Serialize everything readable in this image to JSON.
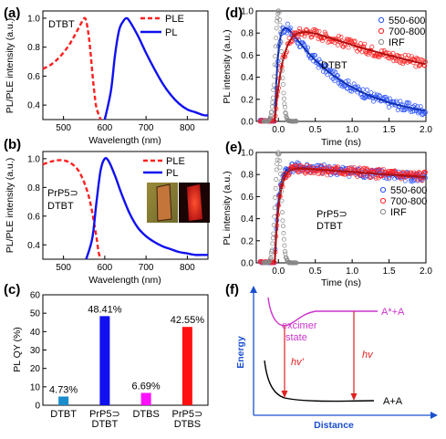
{
  "panel_labels": [
    "(a)",
    "(b)",
    "(c)",
    "(d)",
    "(e)",
    "(f)"
  ],
  "chart_data": [
    {
      "panel": "(a)",
      "type": "line",
      "xlabel": "Wavelength (nm)",
      "ylabel": "PL/PLE intensity (a.u.)",
      "xlim": [
        450,
        850
      ],
      "ylim": [
        0.3,
        1.05
      ],
      "xticks": [
        "500",
        "600",
        "700",
        "800"
      ],
      "yticks": [
        "0.4",
        "0.6",
        "0.8",
        "1.0"
      ],
      "inner_label": "DTBT",
      "legend": [
        "PLE",
        "PL"
      ],
      "series": [
        {
          "name": "PLE",
          "color": "#ff2020",
          "style": "dashed",
          "x": [
            450,
            470,
            490,
            510,
            525,
            540,
            550,
            555,
            560,
            565,
            570,
            575,
            580,
            590
          ],
          "y": [
            0.65,
            0.68,
            0.73,
            0.8,
            0.87,
            0.95,
            1.0,
            0.98,
            0.9,
            0.78,
            0.62,
            0.48,
            0.38,
            0.3
          ]
        },
        {
          "name": "PL",
          "color": "#1010f0",
          "style": "solid",
          "x": [
            600,
            615,
            625,
            635,
            645,
            652,
            660,
            680,
            700,
            720,
            740,
            760,
            780,
            800,
            820,
            840,
            850
          ],
          "y": [
            0.3,
            0.5,
            0.75,
            0.92,
            0.98,
            1.0,
            0.98,
            0.88,
            0.76,
            0.65,
            0.55,
            0.47,
            0.41,
            0.37,
            0.35,
            0.33,
            0.33
          ]
        }
      ]
    },
    {
      "panel": "(b)",
      "type": "line",
      "xlabel": "Wavelength (nm)",
      "ylabel": "PL/PLE intensity (a.u.)",
      "xlim": [
        450,
        850
      ],
      "ylim": [
        0.3,
        1.05
      ],
      "xticks": [
        "500",
        "600",
        "700",
        "800"
      ],
      "yticks": [
        "0.4",
        "0.6",
        "0.8",
        "1.0"
      ],
      "inner_label": [
        "PrP5⊃",
        "DTBT"
      ],
      "legend": [
        "PLE",
        "PL"
      ],
      "series": [
        {
          "name": "PLE",
          "color": "#ff2020",
          "style": "dashed",
          "x": [
            450,
            470,
            490,
            510,
            530,
            545,
            560,
            570,
            580,
            585,
            590
          ],
          "y": [
            0.96,
            0.98,
            0.99,
            0.98,
            0.94,
            0.87,
            0.75,
            0.62,
            0.45,
            0.35,
            0.3
          ]
        },
        {
          "name": "PL",
          "color": "#1010f0",
          "style": "solid",
          "x": [
            555,
            570,
            580,
            590,
            600,
            610,
            625,
            640,
            660,
            680,
            700,
            720,
            740,
            760,
            780,
            800,
            820,
            840,
            850
          ],
          "y": [
            0.3,
            0.45,
            0.7,
            0.92,
            1.0,
            0.98,
            0.88,
            0.76,
            0.62,
            0.52,
            0.46,
            0.42,
            0.39,
            0.37,
            0.35,
            0.34,
            0.33,
            0.33,
            0.33
          ]
        }
      ]
    },
    {
      "panel": "(c)",
      "type": "bar",
      "ylabel": "PL QY (%)",
      "ylim": [
        0,
        60
      ],
      "yticks": [
        "0",
        "10",
        "20",
        "30",
        "40",
        "50",
        "60"
      ],
      "categories": [
        [
          "DTBT"
        ],
        [
          "PrP5⊃",
          "DTBT"
        ],
        [
          "DTBS"
        ],
        [
          "PrP5⊃",
          "DTBS"
        ]
      ],
      "values": [
        4.73,
        48.41,
        6.69,
        42.55
      ],
      "value_labels": [
        "4.73%",
        "48.41%",
        "6.69%",
        "42.55%"
      ],
      "colors": [
        "#1a8ccc",
        "#1010f0",
        "#ff10ff",
        "#ff1010"
      ]
    },
    {
      "panel": "(d)",
      "type": "scatter",
      "xlabel": "Time (ns)",
      "ylabel": "PL intensity (a.u.)",
      "xlim": [
        -0.3,
        2.0
      ],
      "ylim": [
        0,
        1.0
      ],
      "xticks": [
        "0.0",
        "0.5",
        "1.0",
        "1.5",
        "2.0"
      ],
      "yticks": [
        "0.0",
        "0.2",
        "0.4",
        "0.6",
        "0.8",
        "1.0"
      ],
      "inner_label": "DTBT",
      "legend": [
        "550-600",
        "700-800",
        "IRF"
      ],
      "series": [
        {
          "name": "550-600",
          "color": "#2850ff",
          "rise": 0.05,
          "tau": 0.85,
          "amp": 1.0
        },
        {
          "name": "700-800",
          "color": "#ff2020",
          "rise": 0.12,
          "tau": 3.4,
          "amp": 0.93
        },
        {
          "name": "IRF",
          "color": "#888888",
          "center": 0.0,
          "width": 0.06
        }
      ]
    },
    {
      "panel": "(e)",
      "type": "scatter",
      "xlabel": "Time (ns)",
      "ylabel": "PL intensity (a.u.)",
      "xlim": [
        -0.3,
        2.0
      ],
      "ylim": [
        0,
        1.0
      ],
      "xticks": [
        "0.0",
        "0.5",
        "1.0",
        "1.5",
        "2.0"
      ],
      "yticks": [
        "0.0",
        "0.2",
        "0.4",
        "0.6",
        "0.8",
        "1.0"
      ],
      "inner_label": [
        "PrP5⊃",
        "DTBT"
      ],
      "legend": [
        "550-600",
        "700-800",
        "IRF"
      ],
      "series": [
        {
          "name": "550-600",
          "color": "#2850ff",
          "rise": 0.05,
          "tau": 15.0,
          "amp": 0.88
        },
        {
          "name": "700-800",
          "color": "#ff2020",
          "rise": 0.06,
          "tau": 18.0,
          "amp": 0.87
        },
        {
          "name": "IRF",
          "color": "#888888",
          "center": 0.0,
          "width": 0.06
        }
      ]
    }
  ],
  "diagram_f": {
    "ylabel": "Energy",
    "xlabel": "Distance",
    "upper_state": "A*+A",
    "lower_state": "A+A",
    "excimer_label": [
      "excimer",
      "state"
    ],
    "transition_1": "hv'",
    "transition_2": "hv",
    "upper_color": "#cc33cc",
    "arrow_color": "#e02020"
  }
}
